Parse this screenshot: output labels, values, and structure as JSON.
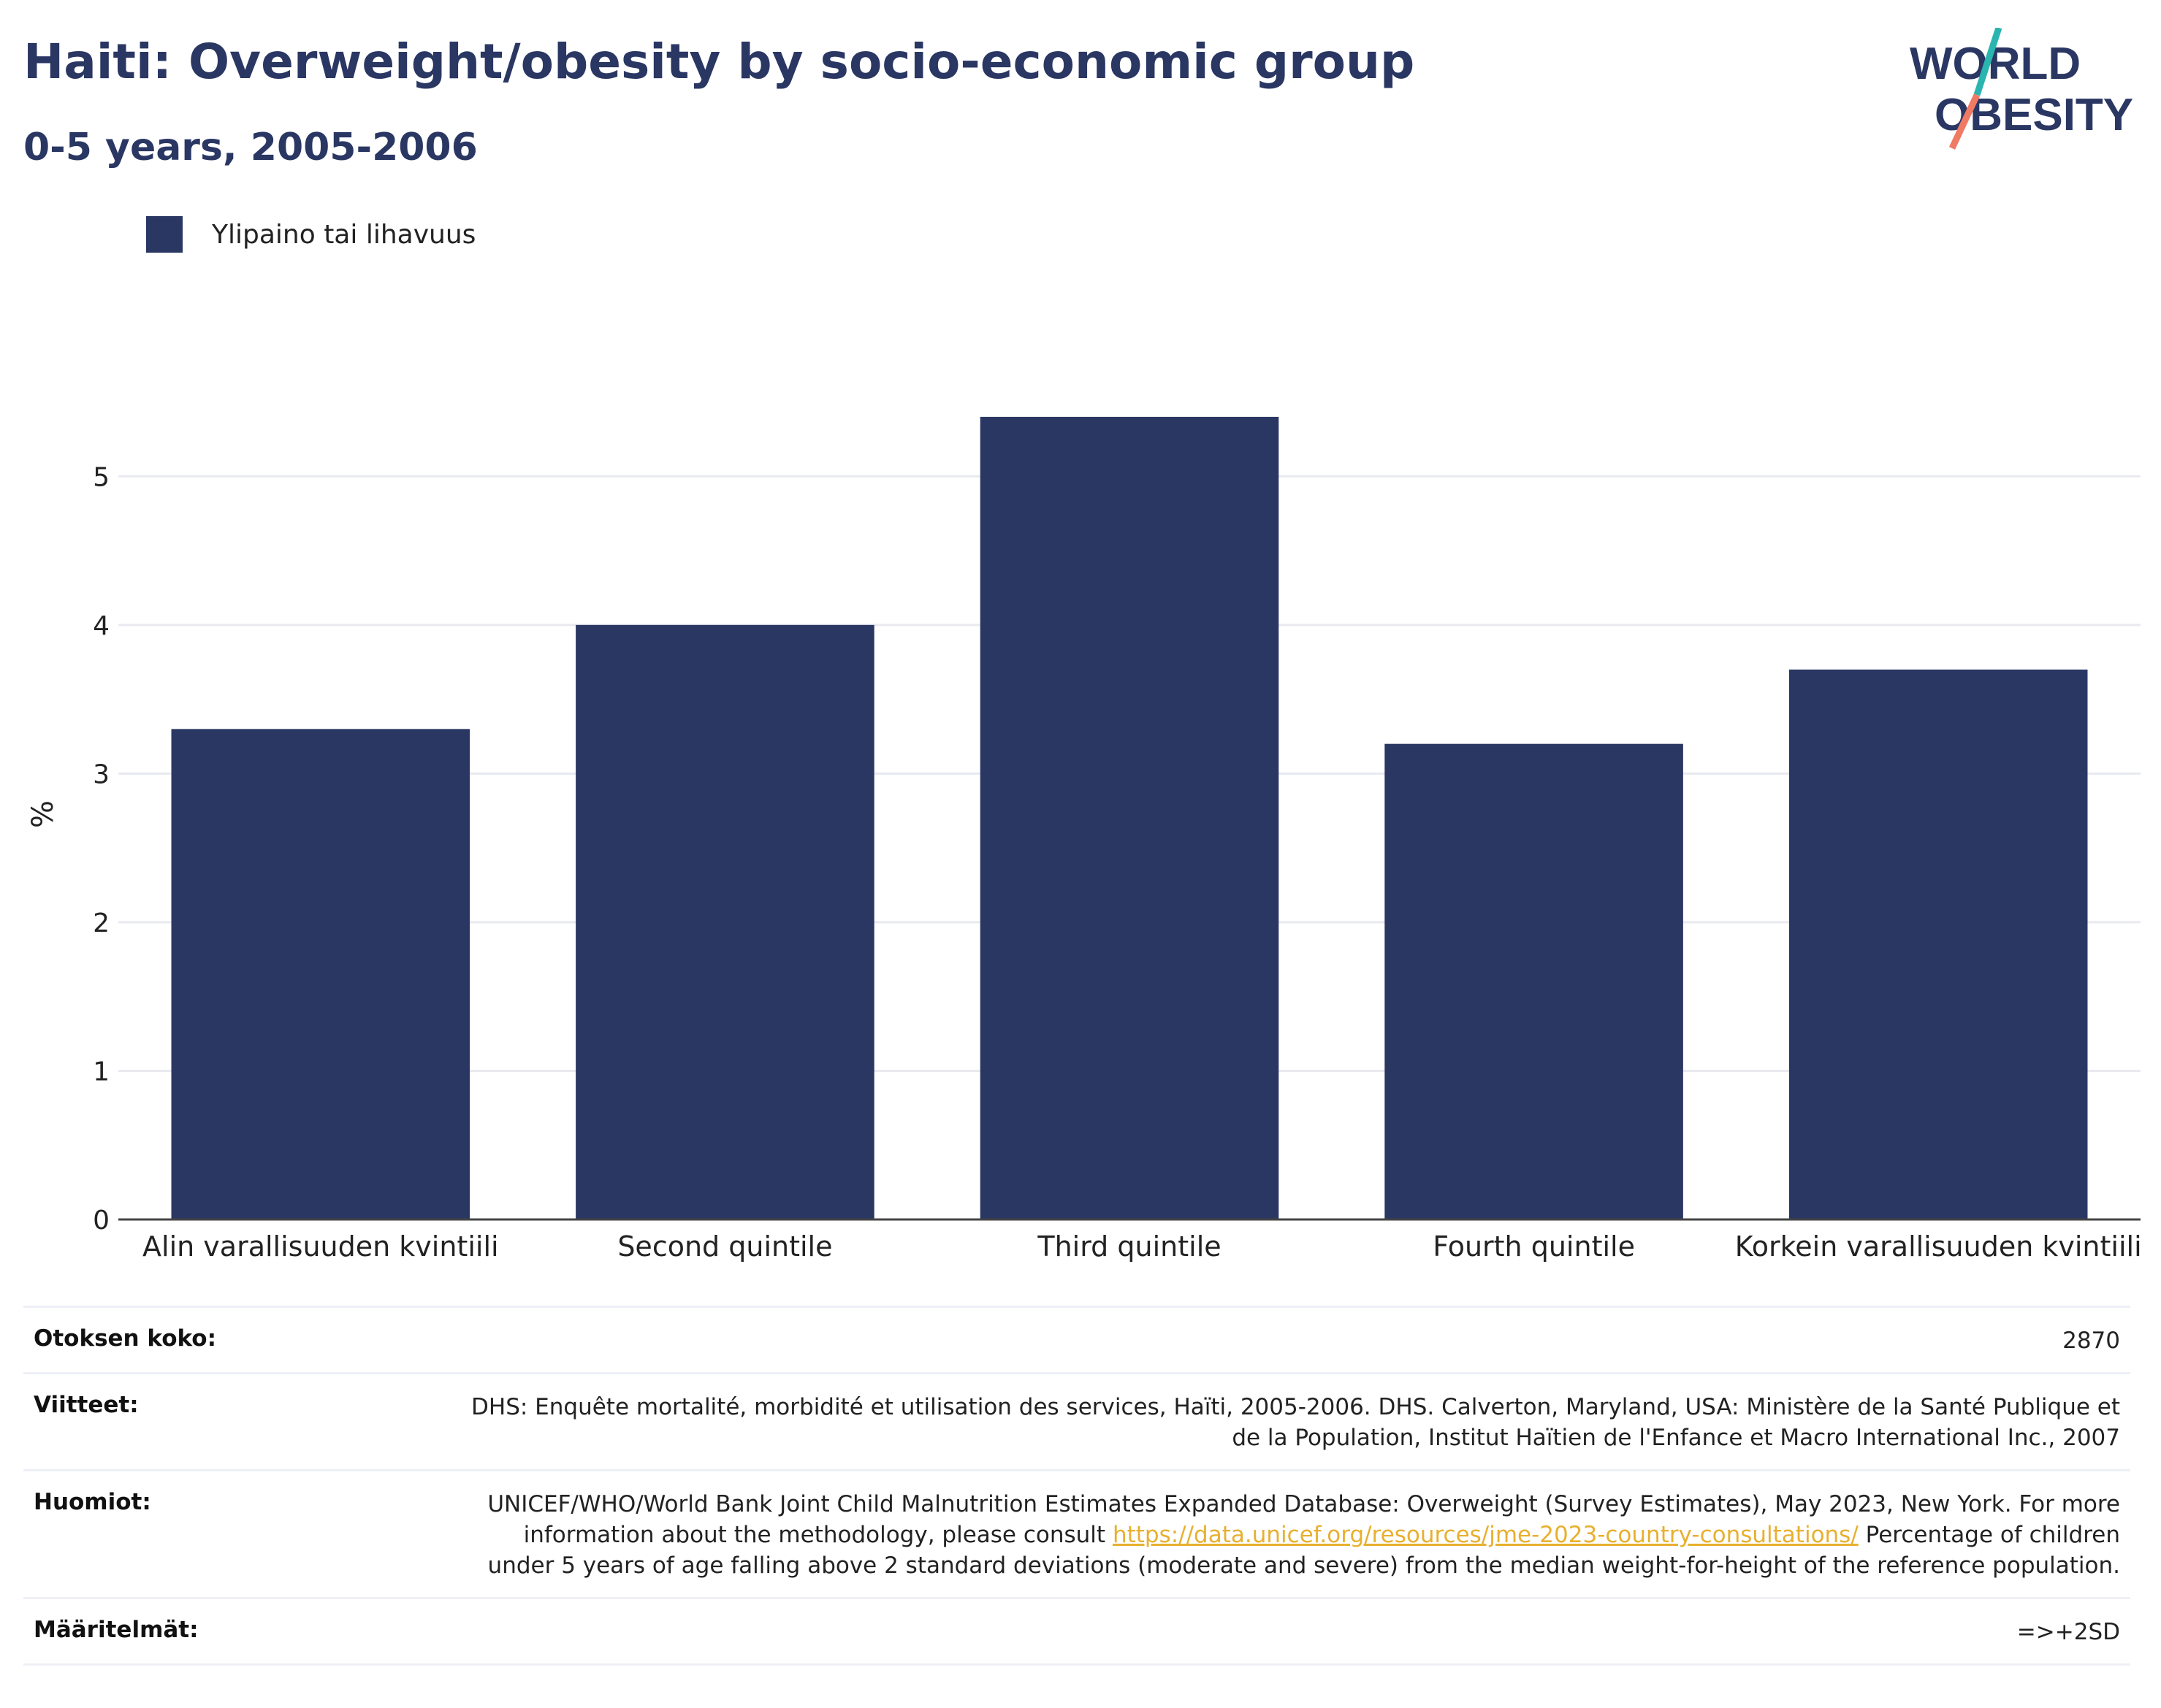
{
  "header": {
    "title": "Haiti: Overweight/obesity by socio-economic group",
    "subtitle": "0-5 years, 2005-2006",
    "logo_line1": "WORLD",
    "logo_line2": "OBESITY"
  },
  "colors": {
    "bar": "#2a3763",
    "title": "#2a3763",
    "link": "#e8b030",
    "logo_teal": "#2ab5b0",
    "logo_coral": "#f07a63"
  },
  "chart_data": {
    "type": "bar",
    "title": "Haiti: Overweight/obesity by socio-economic group",
    "subtitle": "0-5 years, 2005-2006",
    "categories": [
      "Alin varallisuuden kvintiili",
      "Second quintile",
      "Third quintile",
      "Fourth quintile",
      "Korkein varallisuuden kvintiili"
    ],
    "series": [
      {
        "name": "Ylipaino tai lihavuus",
        "values": [
          3.3,
          4.0,
          5.4,
          3.2,
          3.7
        ]
      }
    ],
    "ylabel": "%",
    "xlabel": "",
    "ylim": [
      0,
      5.65
    ],
    "yticks": [
      0,
      1,
      2,
      3,
      4,
      5
    ],
    "grid": true,
    "legend_position": "top-left"
  },
  "info": {
    "sample_label": "Otoksen koko:",
    "sample_value": "2870",
    "references_label": "Viitteet:",
    "references_value": "DHS: Enquête mortalité, morbidité et utilisation des services, Haïti, 2005-2006. DHS. Calverton, Maryland, USA: Ministère de la Santé Publique et de la Population, Institut Haïtien de l'Enfance et Macro International Inc., 2007",
    "notes_label": "Huomiot:",
    "notes_text_before": "UNICEF/WHO/World Bank Joint Child Malnutrition Estimates Expanded Database: Overweight (Survey Estimates), May 2023, New York. For more information about the methodology, please consult ",
    "notes_link": "https://data.unicef.org/resources/jme-2023-country-consultations/",
    "notes_text_after": " Percentage of children under 5 years of age falling above 2 standard deviations (moderate and severe) from the median weight-for-height of the reference population.",
    "definitions_label": "Määritelmät:",
    "definitions_value": "=>+2SD"
  }
}
